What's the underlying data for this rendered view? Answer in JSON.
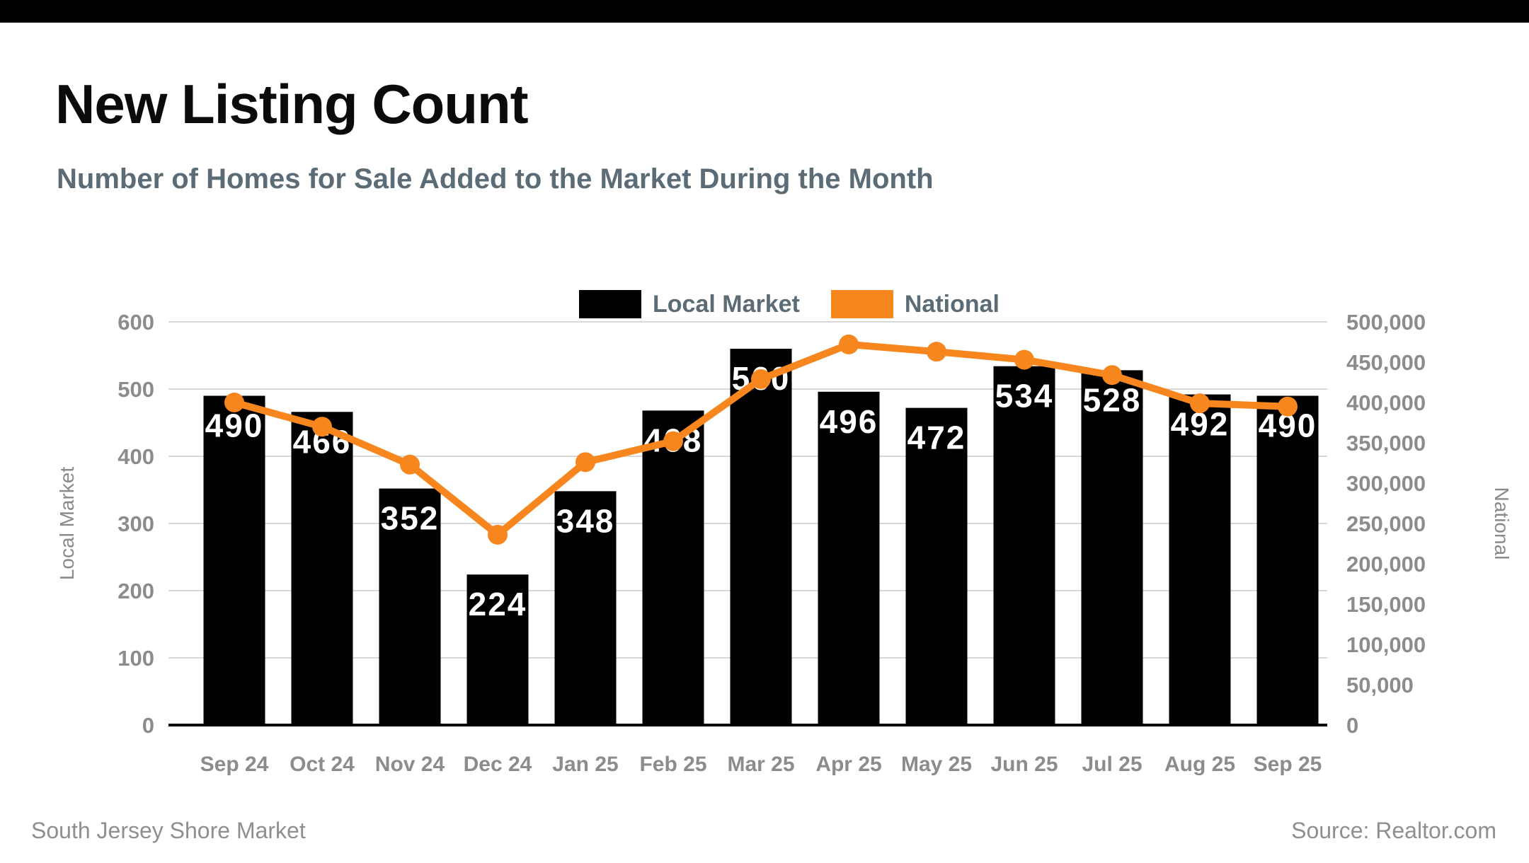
{
  "header": {
    "title": "New Listing Count",
    "subtitle": "Number of Homes for Sale Added to the Market During the Month"
  },
  "legend": [
    {
      "label": "Local Market",
      "color": "#000000"
    },
    {
      "label": "National",
      "color": "#F6861D"
    }
  ],
  "footer": {
    "left": "South Jersey Shore Market",
    "right": "Source: Realtor.com"
  },
  "colors": {
    "bar": "#000000",
    "line": "#F6861D",
    "gridline": "#d9d9d9",
    "axis_baseline": "#000000",
    "tick_label": "#8c8c8c",
    "axis_title": "#8a8a8a",
    "bar_label": "#ffffff",
    "subtitle": "#5b6c76"
  },
  "chart_data": {
    "type": "bar",
    "subtype": "dual-axis bar+line combo",
    "categories": [
      "Sep 24",
      "Oct 24",
      "Nov 24",
      "Dec 24",
      "Jan 25",
      "Feb 25",
      "Mar 25",
      "Apr 25",
      "May 25",
      "Jun 25",
      "Jul 25",
      "Aug 25",
      "Sep 25"
    ],
    "series": [
      {
        "name": "Local Market",
        "type": "bar",
        "axis": "left",
        "color": "#000000",
        "values": [
          490,
          466,
          352,
          224,
          348,
          468,
          560,
          496,
          472,
          534,
          528,
          492,
          490
        ]
      },
      {
        "name": "National",
        "type": "line",
        "axis": "right",
        "color": "#F6861D",
        "values": [
          400000,
          370000,
          323000,
          236000,
          326000,
          352000,
          429000,
          472000,
          463000,
          453000,
          434000,
          399000,
          395000
        ],
        "note": "values estimated from line position against right axis"
      }
    ],
    "title": "New Listing Count",
    "subtitle": "Number of Homes for Sale Added to the Market During the Month",
    "left_axis": {
      "label": "Local Market",
      "min": 0,
      "max": 600,
      "step": 100,
      "ticks": [
        "0",
        "100",
        "200",
        "300",
        "400",
        "500",
        "600"
      ]
    },
    "right_axis": {
      "label": "National",
      "min": 0,
      "max": 500000,
      "step": 50000,
      "ticks": [
        "0",
        "50,000",
        "100,000",
        "150,000",
        "200,000",
        "250,000",
        "300,000",
        "350,000",
        "400,000",
        "450,000",
        "500,000"
      ]
    },
    "grid": true,
    "legend_position": "top-center",
    "bar_data_labels": true
  }
}
